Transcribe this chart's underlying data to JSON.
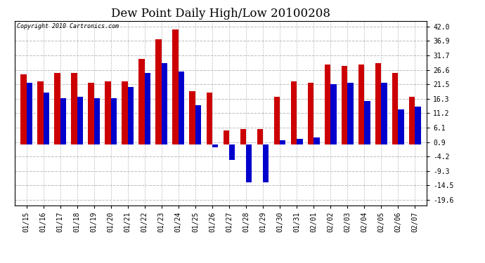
{
  "title": "Dew Point Daily High/Low 20100208",
  "copyright": "Copyright 2010 Cartronics.com",
  "categories": [
    "01/15",
    "01/16",
    "01/17",
    "01/18",
    "01/19",
    "01/20",
    "01/21",
    "01/22",
    "01/23",
    "01/24",
    "01/25",
    "01/26",
    "01/27",
    "01/28",
    "01/29",
    "01/30",
    "01/31",
    "02/01",
    "02/02",
    "02/03",
    "02/04",
    "02/05",
    "02/06",
    "02/07"
  ],
  "highs": [
    25.0,
    22.5,
    25.5,
    25.5,
    22.0,
    22.5,
    22.5,
    30.5,
    37.5,
    41.0,
    19.0,
    18.5,
    5.0,
    5.5,
    5.5,
    17.0,
    22.5,
    22.0,
    28.5,
    28.0,
    28.5,
    29.0,
    25.5,
    17.0
  ],
  "lows": [
    22.0,
    18.5,
    16.5,
    17.0,
    16.5,
    16.5,
    20.5,
    25.5,
    29.0,
    26.0,
    14.0,
    -1.0,
    -5.5,
    -13.5,
    -13.5,
    1.5,
    2.0,
    2.5,
    21.5,
    22.0,
    15.5,
    22.0,
    12.5,
    13.5
  ],
  "high_color": "#cc0000",
  "low_color": "#0000cc",
  "bg_color": "#ffffff",
  "plot_bg_color": "#ffffff",
  "grid_color": "#bbbbbb",
  "yticks": [
    42.0,
    36.9,
    31.7,
    26.6,
    21.5,
    16.3,
    11.2,
    6.1,
    0.9,
    -4.2,
    -9.3,
    -14.5,
    -19.6
  ],
  "ylim": [
    -21.5,
    44.0
  ],
  "bar_width": 0.35,
  "title_fontsize": 12,
  "tick_fontsize": 7
}
